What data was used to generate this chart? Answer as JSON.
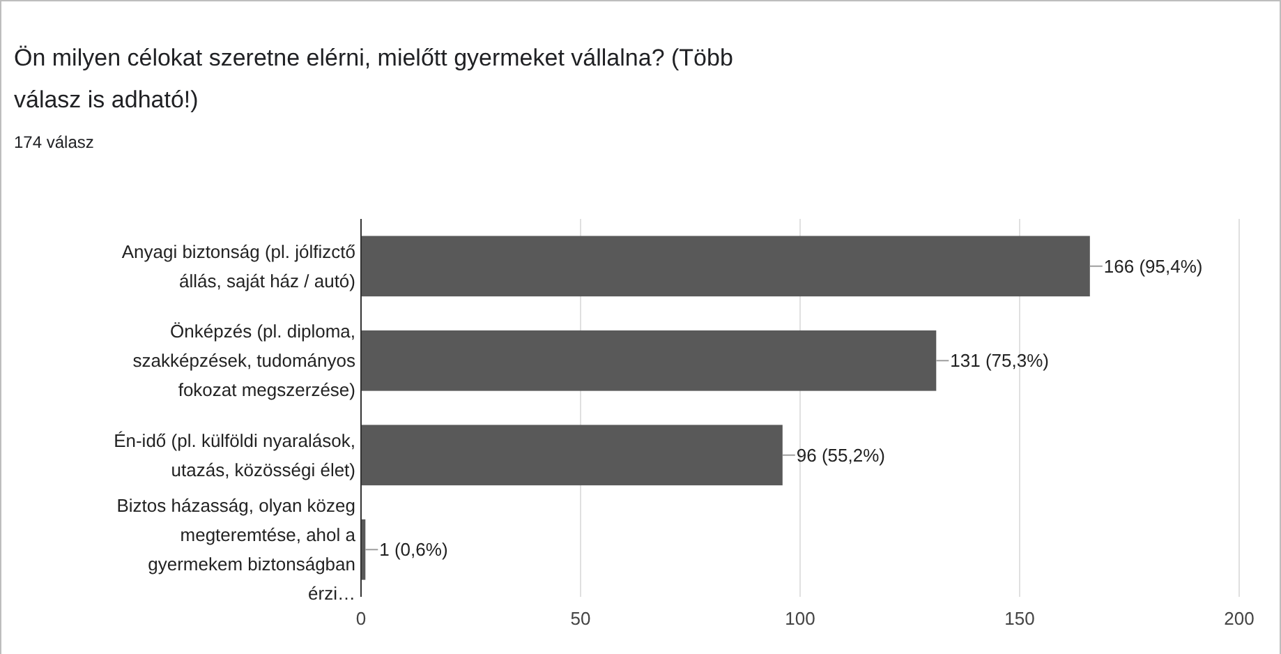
{
  "chart_data": {
    "type": "bar",
    "orientation": "horizontal",
    "title": "Ön milyen célokat szeretne elérni, mielőtt gyermeket vállalna? (Több válasz is adható!)",
    "subtitle": "174 válasz",
    "categories": [
      "Anyagi biztonság (pl. jólfizctő állás, saját ház / autó)",
      "Önképzés (pl. diploma, szakképzések, tudományos fokozat megszerzése)",
      "Én-idő (pl. külföldi nyaralások, utazás, közösségi élet)",
      "Biztos házasság, olyan közeg megteremtése, ahol a gyermekem biztonságban érzi…"
    ],
    "values": [
      166,
      131,
      96,
      1
    ],
    "value_labels": [
      "166 (95,4%)",
      "131 (75,3%)",
      "96 (55,2%)",
      "1 (0,6%)"
    ],
    "color": "#595959",
    "xlim": [
      0,
      200
    ],
    "xticks": [
      0,
      50,
      100,
      150,
      200
    ],
    "grid": "x"
  }
}
